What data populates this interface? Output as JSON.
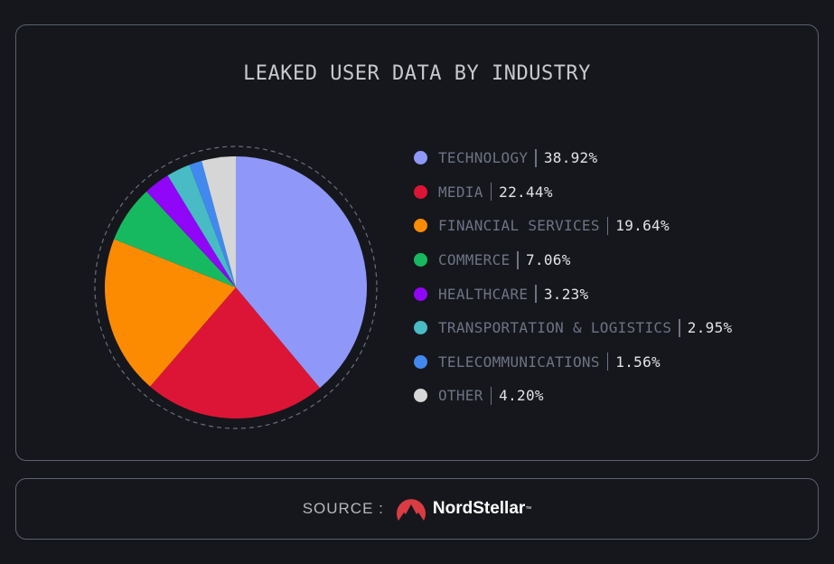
{
  "title": "LEAKED USER DATA BY INDUSTRY",
  "legend": [
    {
      "label": "TECHNOLOGY",
      "value": "38.92%",
      "color": "#8f98f8"
    },
    {
      "label": "MEDIA",
      "value": "22.44%",
      "color": "#dc1537"
    },
    {
      "label": "FINANCIAL SERVICES",
      "value": "19.64%",
      "color": "#fd8b02"
    },
    {
      "label": "COMMERCE",
      "value": "7.06%",
      "color": "#17b960"
    },
    {
      "label": "HEALTHCARE",
      "value": "3.23%",
      "color": "#8f06f8"
    },
    {
      "label": "TRANSPORTATION & LOGISTICS",
      "value": "2.95%",
      "color": "#48bbc5"
    },
    {
      "label": "TELECOMMUNICATIONS",
      "value": "1.56%",
      "color": "#4189ee"
    },
    {
      "label": "OTHER",
      "value": "4.20%",
      "color": "#d6d6d6"
    }
  ],
  "source": {
    "label": "SOURCE :",
    "brand": "NordStellar",
    "trademark": "™",
    "logo_color": "#d93c42"
  },
  "chart_data": {
    "type": "pie",
    "title": "LEAKED USER DATA BY INDUSTRY",
    "categories": [
      "TECHNOLOGY",
      "MEDIA",
      "FINANCIAL SERVICES",
      "COMMERCE",
      "HEALTHCARE",
      "TRANSPORTATION & LOGISTICS",
      "TELECOMMUNICATIONS",
      "OTHER"
    ],
    "values": [
      38.92,
      22.44,
      19.64,
      7.06,
      3.23,
      2.95,
      1.56,
      4.2
    ],
    "colors": [
      "#8f98f8",
      "#dc1537",
      "#fd8b02",
      "#17b960",
      "#8f06f8",
      "#48bbc5",
      "#4189ee",
      "#d6d6d6"
    ],
    "unit": "%",
    "start_angle": "12 o'clock, clockwise",
    "legend_position": "right"
  }
}
